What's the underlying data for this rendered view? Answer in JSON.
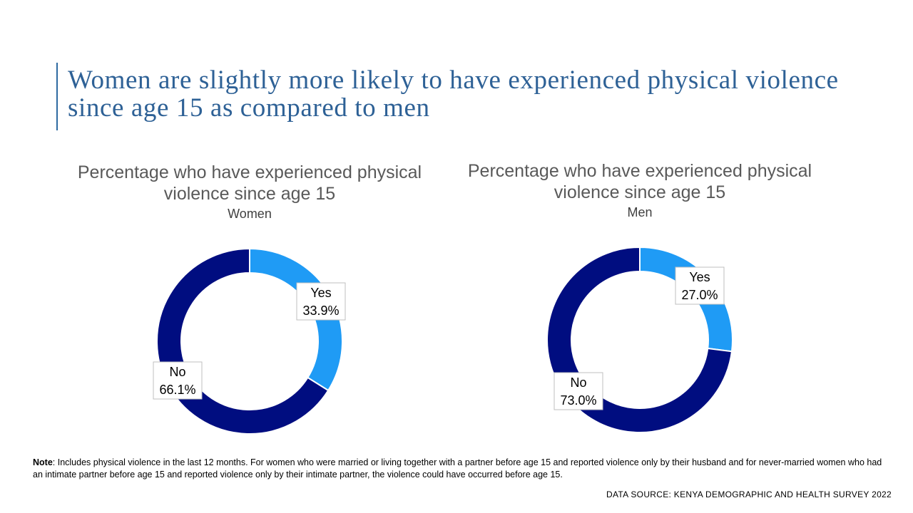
{
  "title": "Women are slightly more likely to have experienced physical violence since age 15 as compared to men",
  "colors": {
    "yes": "#1f9bf5",
    "no": "#000d80",
    "title": "#2e6196"
  },
  "chart_data": [
    {
      "type": "pie",
      "style": "donut",
      "title": "Percentage who have experienced physical violence since age 15",
      "subtitle": "Women",
      "slices": [
        {
          "label": "Yes",
          "value": 33.9,
          "display": "33.9%"
        },
        {
          "label": "No",
          "value": 66.1,
          "display": "66.1%"
        }
      ]
    },
    {
      "type": "pie",
      "style": "donut",
      "title": "Percentage who have experienced physical violence since age 15",
      "subtitle": "Men",
      "slices": [
        {
          "label": "Yes",
          "value": 27.0,
          "display": "27.0%"
        },
        {
          "label": "No",
          "value": 73.0,
          "display": "73.0%"
        }
      ]
    }
  ],
  "note": {
    "label": "Note",
    "text": ": Includes physical violence in the last 12 months. For women who were married or living together with a partner before age 15 and reported violence only by their husband and for never-married women who had an intimate partner before age 15 and reported violence only by their intimate partner, the violence could have occurred before age 15."
  },
  "source": "DATA SOURCE: KENYA DEMOGRAPHIC  AND HEALTH SURVEY 2022"
}
